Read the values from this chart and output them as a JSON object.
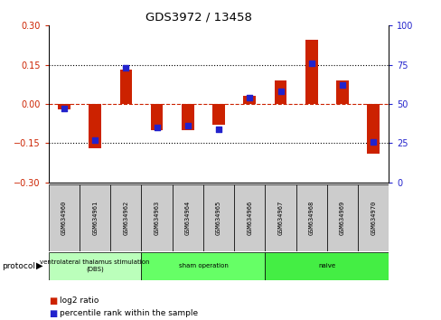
{
  "title": "GDS3972 / 13458",
  "samples": [
    "GSM634960",
    "GSM634961",
    "GSM634962",
    "GSM634963",
    "GSM634964",
    "GSM634965",
    "GSM634966",
    "GSM634967",
    "GSM634968",
    "GSM634969",
    "GSM634970"
  ],
  "log2_ratio": [
    -0.02,
    -0.17,
    0.13,
    -0.1,
    -0.1,
    -0.08,
    0.03,
    0.09,
    0.245,
    0.09,
    -0.19
  ],
  "percentile_rank": [
    47,
    27,
    73,
    35,
    36,
    34,
    54,
    58,
    76,
    62,
    26
  ],
  "groups": [
    {
      "label": "ventrolateral thalamus stimulation\n(DBS)",
      "start": 0,
      "end": 3
    },
    {
      "label": "sham operation",
      "start": 3,
      "end": 7
    },
    {
      "label": "naive",
      "start": 7,
      "end": 11
    }
  ],
  "group_colors": [
    "#bbffbb",
    "#66ff66",
    "#44ee44"
  ],
  "ylim_left": [
    -0.3,
    0.3
  ],
  "ylim_right": [
    0,
    100
  ],
  "yticks_left": [
    -0.3,
    -0.15,
    0,
    0.15,
    0.3
  ],
  "yticks_right": [
    0,
    25,
    50,
    75,
    100
  ],
  "hlines_dotted": [
    -0.15,
    0.15
  ],
  "bar_color": "#cc2200",
  "dot_color": "#2222cc",
  "bar_width": 0.4,
  "dot_size": 22,
  "legend_red": "log2 ratio",
  "legend_blue": "percentile rank within the sample",
  "protocol_label": "protocol",
  "sample_box_color": "#cccccc"
}
